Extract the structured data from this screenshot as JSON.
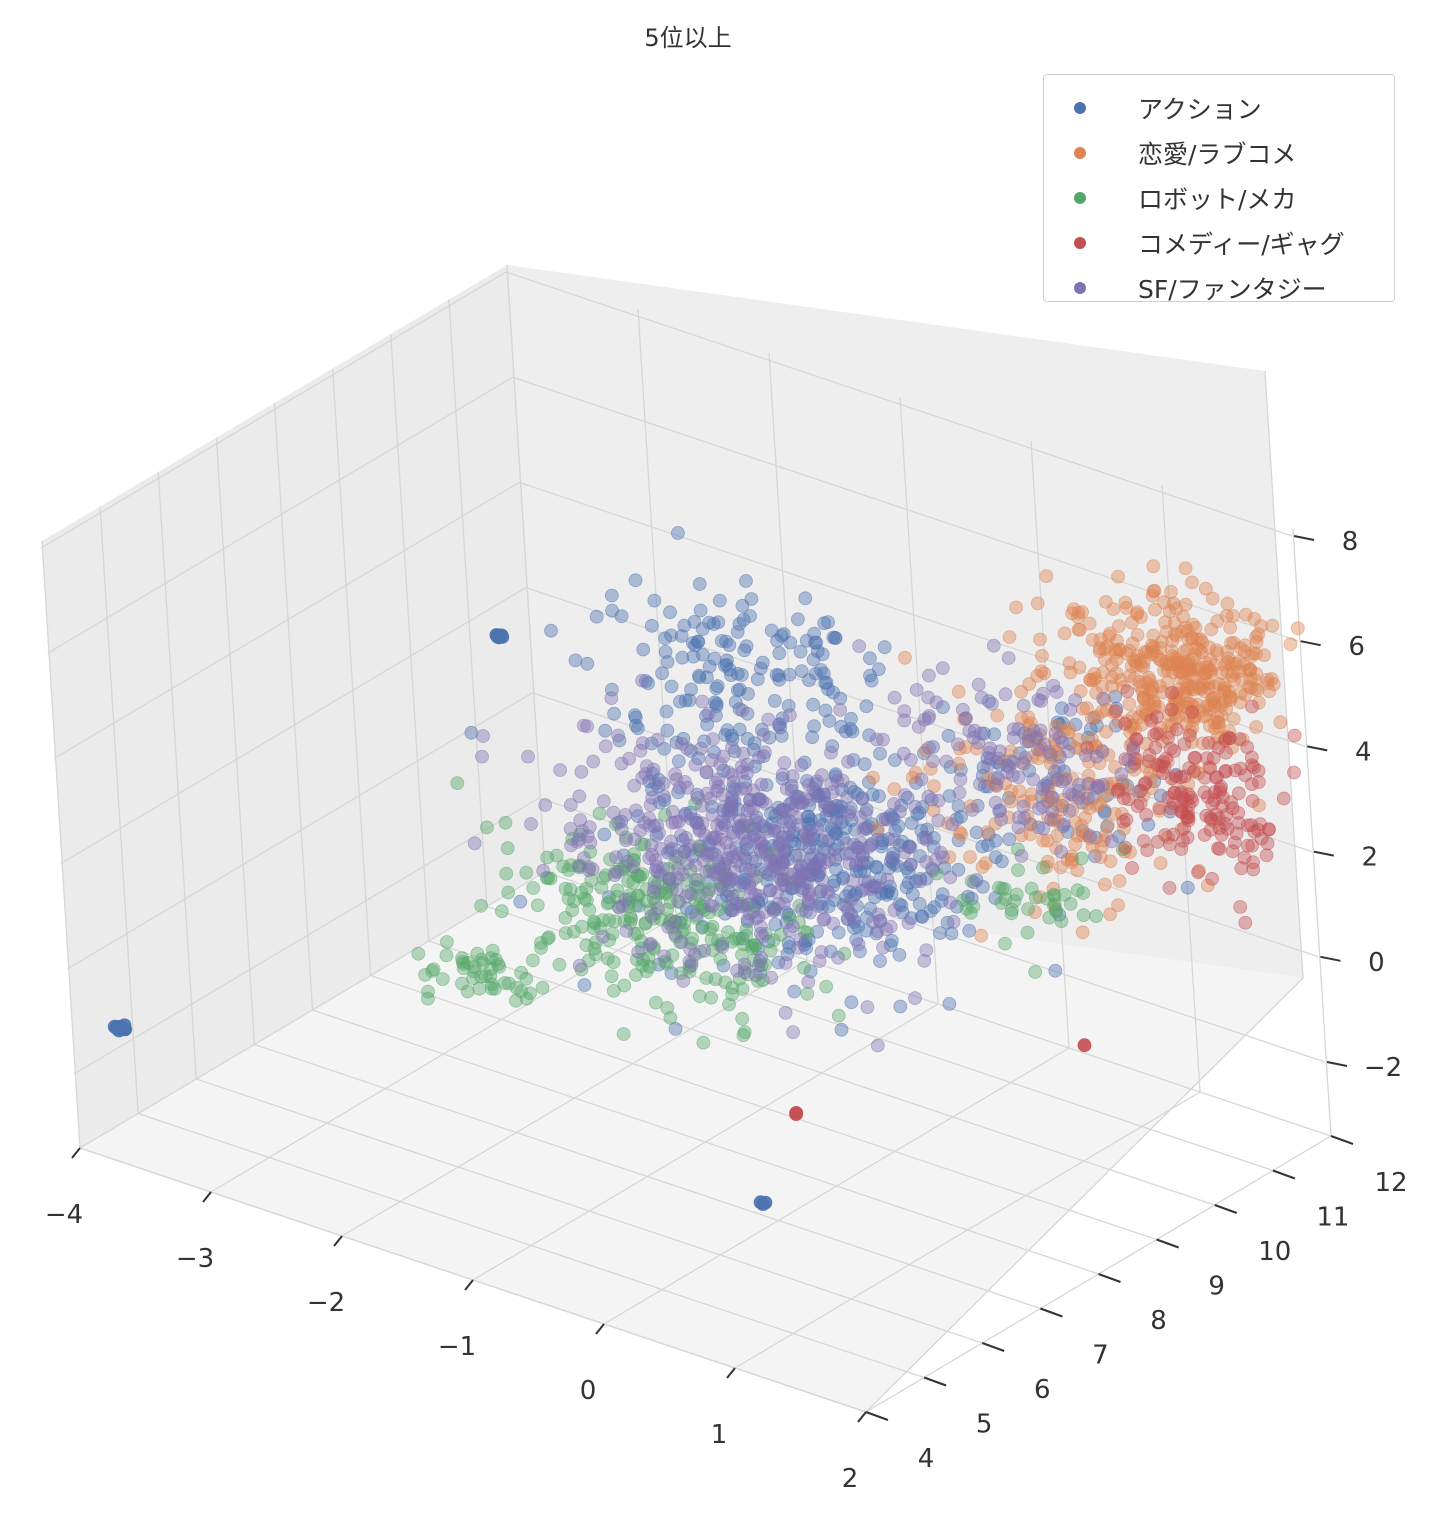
{
  "chart_data": {
    "type": "scatter",
    "title": "5位以上",
    "xlabel": "",
    "ylabel": "",
    "zlabel": "",
    "xlim": [
      -4,
      2
    ],
    "ylim": [
      4,
      12
    ],
    "zlim": [
      -2,
      8
    ],
    "x_ticks": [
      "−4",
      "−3",
      "−2",
      "−1",
      "0",
      "1",
      "2"
    ],
    "y_ticks": [
      "4",
      "5",
      "6",
      "7",
      "8",
      "9",
      "10",
      "11",
      "12"
    ],
    "z_ticks": [
      "−2",
      "0",
      "2",
      "4",
      "6",
      "8"
    ],
    "grid": true,
    "legend_position": "top-right",
    "series": [
      {
        "name": "アクション",
        "color": "#4c72b0",
        "clusters": [
          {
            "x": 0.0,
            "y": 8.0,
            "z": 3.0,
            "spread": [
              1.2,
              1.6,
              1.8
            ],
            "count": 420
          },
          {
            "x": -1.2,
            "y": 9.5,
            "z": 4.5,
            "spread": [
              0.9,
              1.2,
              1.3
            ],
            "count": 140
          },
          {
            "x": 1.0,
            "y": 10.0,
            "z": 4.0,
            "spread": [
              0.8,
              1.1,
              1.3
            ],
            "count": 70
          },
          {
            "x": -3.7,
            "y": 4.2,
            "z": -1.0,
            "spread": [
              0.04,
              0.05,
              0.05
            ],
            "count": 10
          },
          {
            "x": -3.2,
            "y": 9.8,
            "z": 3.2,
            "spread": [
              0.03,
              0.04,
              0.04
            ],
            "count": 6
          },
          {
            "x": 0.6,
            "y": 5.5,
            "z": -1.6,
            "spread": [
              0.02,
              0.02,
              0.02
            ],
            "count": 3
          }
        ]
      },
      {
        "name": "恋愛/ラブコメ",
        "color": "#dd8452",
        "clusters": [
          {
            "x": 1.5,
            "y": 11.0,
            "z": 5.5,
            "spread": [
              0.7,
              0.9,
              1.3
            ],
            "count": 380
          },
          {
            "x": 0.8,
            "y": 10.5,
            "z": 3.0,
            "spread": [
              0.9,
              1.3,
              1.8
            ],
            "count": 170
          }
        ]
      },
      {
        "name": "ロボット/メカ",
        "color": "#55a868",
        "clusters": [
          {
            "x": -1.0,
            "y": 7.5,
            "z": 1.2,
            "spread": [
              1.0,
              1.0,
              1.3
            ],
            "count": 260
          },
          {
            "x": -2.2,
            "y": 7.0,
            "z": -0.6,
            "spread": [
              0.4,
              0.5,
              0.25
            ],
            "count": 45
          },
          {
            "x": 0.6,
            "y": 10.0,
            "z": 1.2,
            "spread": [
              0.6,
              0.9,
              0.5
            ],
            "count": 40
          }
        ]
      },
      {
        "name": "コメディー/ギャグ",
        "color": "#c44e52",
        "clusters": [
          {
            "x": 1.5,
            "y": 11.3,
            "z": 3.2,
            "spread": [
              0.6,
              0.8,
              1.5
            ],
            "count": 170
          },
          {
            "x": 0.2,
            "y": 7.0,
            "z": -1.2,
            "spread": [
              0.02,
              0.02,
              0.02
            ],
            "count": 2
          },
          {
            "x": 1.4,
            "y": 9.3,
            "z": -0.4,
            "spread": [
              0.02,
              0.02,
              0.02
            ],
            "count": 1
          }
        ]
      },
      {
        "name": "SF/ファンタジー",
        "color": "#8172b3",
        "clusters": [
          {
            "x": -0.5,
            "y": 8.0,
            "z": 2.5,
            "spread": [
              1.2,
              1.5,
              1.8
            ],
            "count": 480
          },
          {
            "x": 0.7,
            "y": 9.8,
            "z": 4.2,
            "spread": [
              0.8,
              1.2,
              1.4
            ],
            "count": 120
          }
        ]
      }
    ]
  }
}
